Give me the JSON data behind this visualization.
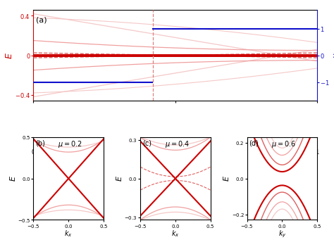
{
  "color_dark": "#cc0000",
  "color_med": "#e06060",
  "color_light": "#f0a0a0",
  "color_vlight": "#f5c8c8",
  "color_blue": "#1010cc",
  "mu_c_val": 0.42,
  "xlim_a": [
    0,
    1
  ],
  "ylim_a": [
    -0.46,
    0.46
  ],
  "xlim_bcd": [
    -0.5,
    0.5
  ],
  "ylim_b": [
    -0.5,
    0.5
  ],
  "ylim_c": [
    -0.32,
    0.32
  ],
  "ylim_d": [
    -0.23,
    0.23
  ],
  "yticks_a": [
    -0.4,
    0,
    0.4
  ],
  "xticks_bcd": [
    -0.5,
    0.0,
    0.5
  ],
  "yticks_b": [
    -0.5,
    0.0,
    0.5
  ],
  "yticks_c": [
    -0.3,
    0.0,
    0.3
  ],
  "yticks_d": [
    -0.2,
    0.0,
    0.2
  ]
}
